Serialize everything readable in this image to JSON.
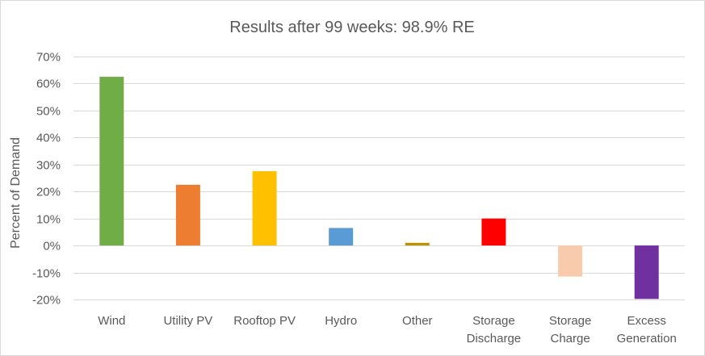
{
  "chart_data": {
    "type": "bar",
    "title": "Results after 99 weeks: 98.9% RE",
    "xlabel": "",
    "ylabel": "Percent of Demand",
    "ylim": [
      -20,
      70
    ],
    "yticks": [
      70,
      60,
      50,
      40,
      30,
      20,
      10,
      0,
      -10,
      -20
    ],
    "ytick_labels": [
      "70%",
      "60%",
      "50%",
      "40%",
      "30%",
      "20%",
      "10%",
      "0%",
      "-10%",
      "-20%"
    ],
    "grid": true,
    "legend": "none",
    "categories": [
      [
        "Wind"
      ],
      [
        "Utility PV"
      ],
      [
        "Rooftop PV"
      ],
      [
        "Hydro"
      ],
      [
        "Other"
      ],
      [
        "Storage",
        "Discharge"
      ],
      [
        "Storage",
        "Charge"
      ],
      [
        "Excess",
        "Generation"
      ]
    ],
    "values": [
      62.5,
      22.5,
      27.5,
      6.5,
      1.0,
      10.0,
      -11.5,
      -19.8
    ],
    "colors": [
      "#70ad47",
      "#ed7d31",
      "#ffc000",
      "#5b9bd5",
      "#bf9000",
      "#ff0000",
      "#f8cbad",
      "#7030a0"
    ]
  }
}
